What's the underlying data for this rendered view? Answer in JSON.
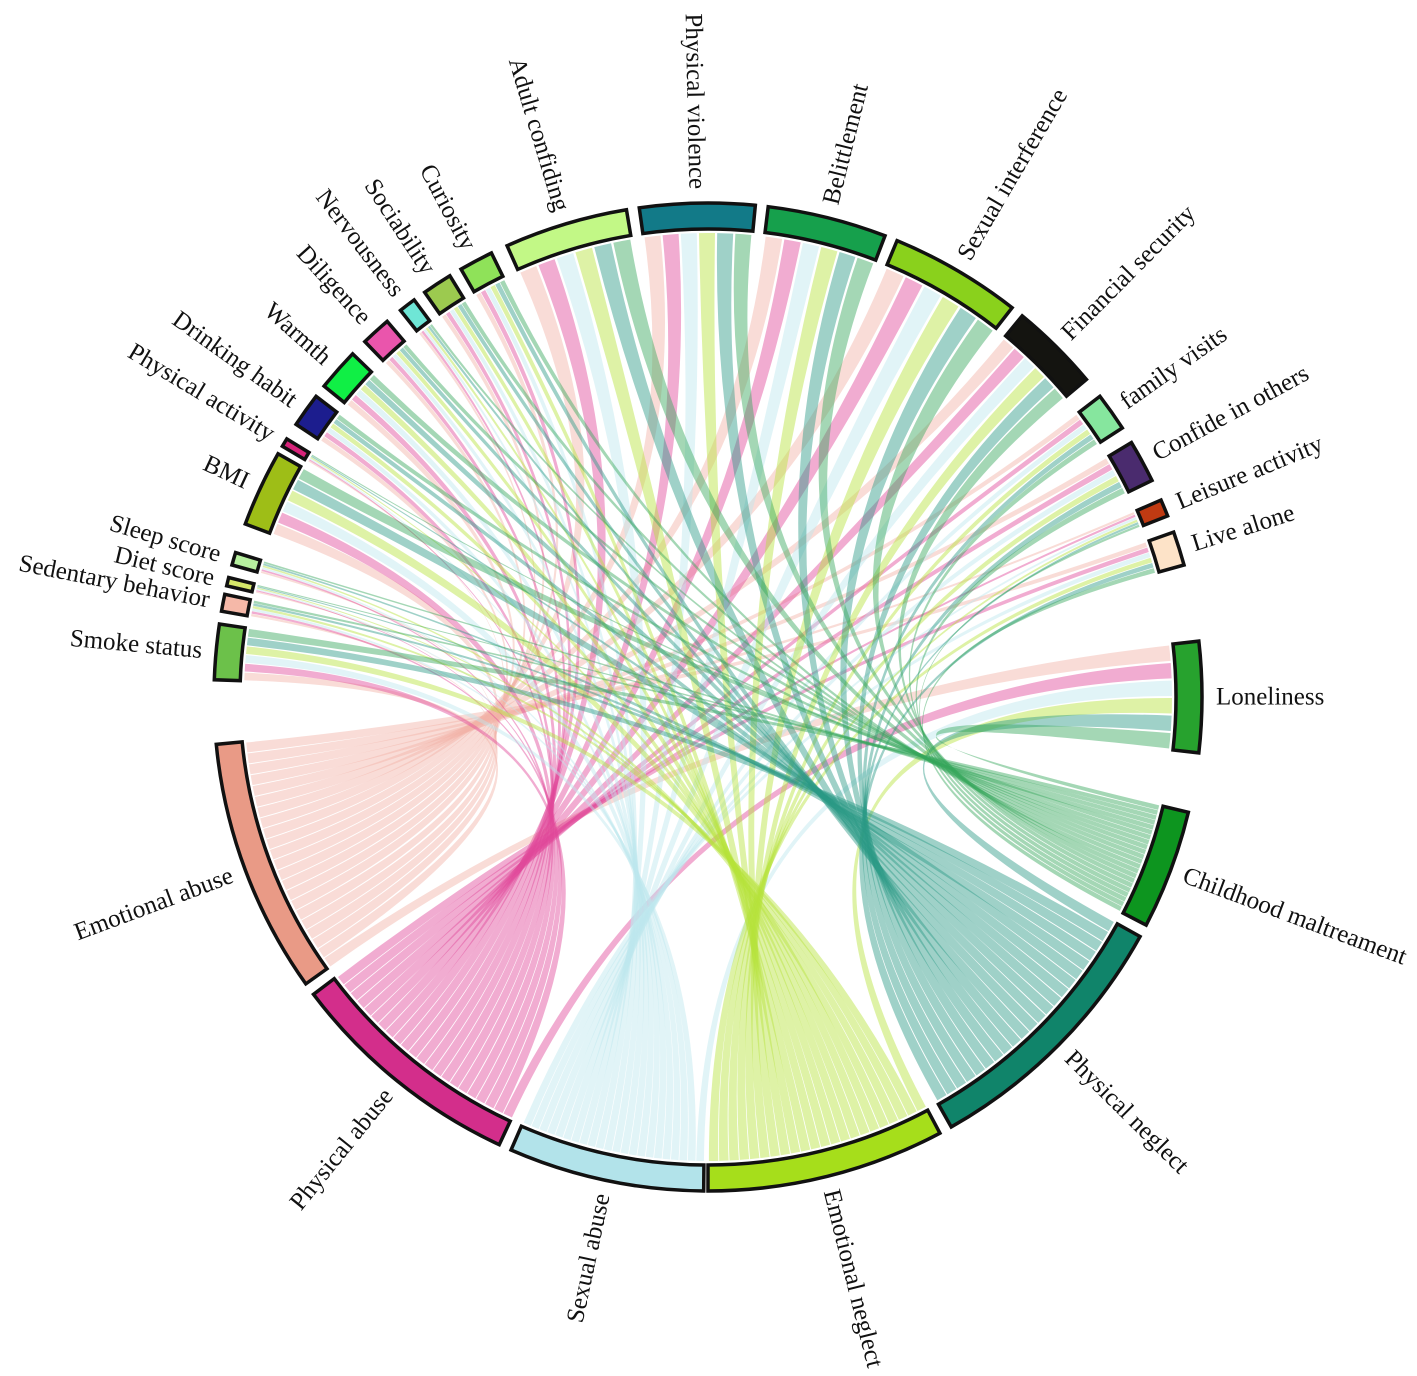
{
  "diagram": {
    "type": "chord",
    "sectors": [
      {
        "id": "loneliness",
        "label": "Loneliness",
        "color": "#27a22e"
      },
      {
        "id": "childhood-maltreatment",
        "label": "Childhood maltreament",
        "color": "#0d951f"
      },
      {
        "id": "physical-neglect",
        "label": "Physical neglect",
        "color": "#10846a"
      },
      {
        "id": "emotional-neglect",
        "label": "Emotional neglect",
        "color": "#a6de1b"
      },
      {
        "id": "sexual-abuse",
        "label": "Sexual abuse",
        "color": "#b2e3ea"
      },
      {
        "id": "physical-abuse",
        "label": "Physical abuse",
        "color": "#d32e8b"
      },
      {
        "id": "emotional-abuse",
        "label": "Emotional abuse",
        "color": "#e99a86"
      },
      {
        "id": "smoke-status",
        "label": "Smoke status",
        "color": "#6cc14a"
      },
      {
        "id": "sedentary-behavior",
        "label": "Sedentary behavior",
        "color": "#f5b8a8"
      },
      {
        "id": "diet-score",
        "label": "Diet score",
        "color": "#d6e86a"
      },
      {
        "id": "sleep-score",
        "label": "Sleep score",
        "color": "#b7f19f"
      },
      {
        "id": "bmi",
        "label": "BMI",
        "color": "#9ebe17"
      },
      {
        "id": "physical-activity",
        "label": "Physical activity",
        "color": "#d8237a"
      },
      {
        "id": "drinking-habit",
        "label": "Drinking habit",
        "color": "#1c1d8e"
      },
      {
        "id": "warmth",
        "label": "Warmth",
        "color": "#10ef45"
      },
      {
        "id": "diligence",
        "label": "Diligence",
        "color": "#ea55ac"
      },
      {
        "id": "nervousness",
        "label": "Nervousness",
        "color": "#6fe6d6"
      },
      {
        "id": "sociability",
        "label": "Sociability",
        "color": "#9cca4f"
      },
      {
        "id": "curiosity",
        "label": "Curiosity",
        "color": "#8fe259"
      },
      {
        "id": "adult-confiding",
        "label": "Adult confiding",
        "color": "#c2f886"
      },
      {
        "id": "physical-violence",
        "label": "Physical violence",
        "color": "#127a88"
      },
      {
        "id": "belittlement",
        "label": "Belittlement",
        "color": "#16a04c"
      },
      {
        "id": "sexual-interference",
        "label": "Sexual interference",
        "color": "#8ad11c"
      },
      {
        "id": "financial-security",
        "label": "Financial security",
        "color": "#141410"
      },
      {
        "id": "family-visits",
        "label": "family visits",
        "color": "#86e69e"
      },
      {
        "id": "confide-in-others",
        "label": "Confide in others",
        "color": "#4a2b6e"
      },
      {
        "id": "leisure-activity",
        "label": "Leisure activity",
        "color": "#c03a12"
      },
      {
        "id": "live-alone",
        "label": "Live alone",
        "color": "#fde3c8"
      }
    ],
    "ribbon_sources": [
      "emotional-abuse",
      "physical-abuse",
      "sexual-abuse",
      "emotional-neglect",
      "physical-neglect",
      "childhood-maltreatment"
    ],
    "ribbon_palette": {
      "emotional-abuse": "#f1b1a6",
      "physical-abuse": "#e0489a",
      "sexual-abuse": "#bde7ee",
      "emotional-neglect": "#b5e23a",
      "physical-neglect": "#2b9a86",
      "childhood-maltreatment": "#35a75a"
    }
  }
}
